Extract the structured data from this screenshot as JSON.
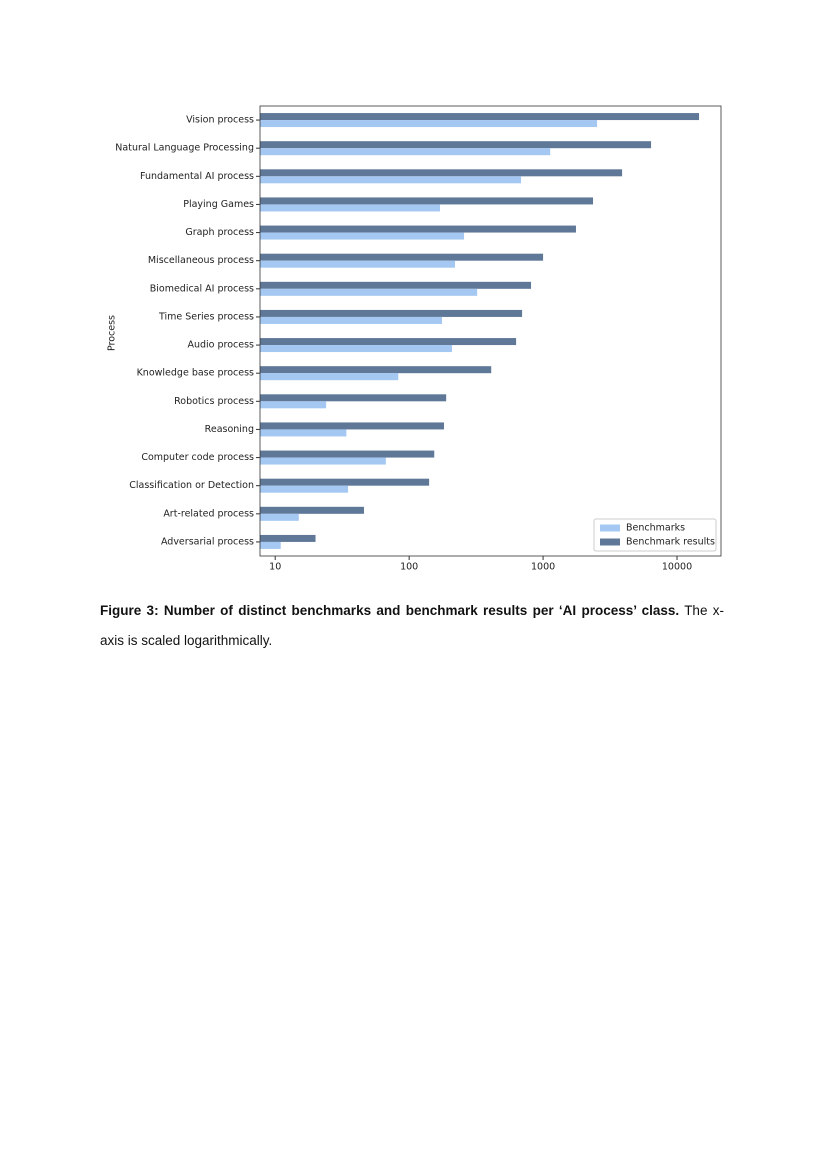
{
  "chart_data": {
    "type": "barh",
    "y_label": "Process",
    "categories": [
      "Vision process",
      "Natural Language Processing",
      "Fundamental AI process",
      "Playing Games",
      "Graph process",
      "Miscellaneous process",
      "Biomedical AI process",
      "Time Series process",
      "Audio process",
      "Knowledge base process",
      "Robotics process",
      "Reasoning",
      "Computer code process",
      "Classification or Detection",
      "Art-related process",
      "Adversarial process"
    ],
    "series": [
      {
        "name": "Benchmarks",
        "color": "#a4c8f2",
        "values": [
          2530,
          1130,
          685,
          170,
          257,
          220,
          322,
          176,
          209,
          83,
          24,
          34,
          67,
          35,
          15,
          11
        ]
      },
      {
        "name": "Benchmark results",
        "color": "#5f7898",
        "values": [
          14600,
          6400,
          3890,
          2360,
          1760,
          1000,
          813,
          697,
          629,
          410,
          189,
          182,
          154,
          141,
          46,
          20
        ]
      }
    ],
    "xlim": [
      7.7,
      21300
    ],
    "xticks": [
      10,
      100,
      1000,
      10000
    ],
    "log_x": true,
    "legend": "lower right"
  },
  "caption": {
    "bold": "Figure 3: Number of distinct benchmarks and benchmark results per ‘AI process’ class.",
    "text": " The x-axis is scaled logarithmically."
  }
}
